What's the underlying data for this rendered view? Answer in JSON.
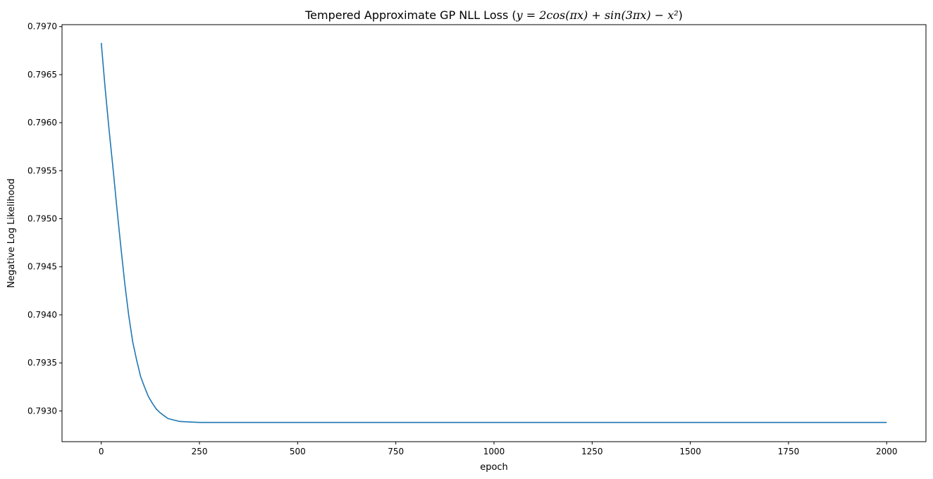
{
  "chart_data": {
    "type": "line",
    "title": {
      "prefix": "Tempered Approximate GP NLL Loss (",
      "math": "y = 2cos(πx) + sin(3πx) − x²",
      "suffix": ")"
    },
    "xlabel": "epoch",
    "ylabel": "Negative Log Likelihood",
    "xlim": [
      -100,
      2100
    ],
    "ylim": [
      0.79268,
      0.79702
    ],
    "x_ticks": [
      0,
      250,
      500,
      750,
      1000,
      1250,
      1500,
      1750,
      2000
    ],
    "x_tick_labels": [
      "0",
      "250",
      "500",
      "750",
      "1000",
      "1250",
      "1500",
      "1750",
      "2000"
    ],
    "y_ticks": [
      0.793,
      0.7935,
      0.794,
      0.7945,
      0.795,
      0.7955,
      0.796,
      0.7965,
      0.797
    ],
    "y_tick_labels": [
      "0.7930",
      "0.7935",
      "0.7940",
      "0.7945",
      "0.7950",
      "0.7955",
      "0.7960",
      "0.7965",
      "0.7970"
    ],
    "grid": false,
    "series": [
      {
        "color": "#1f77b4",
        "x": [
          0,
          10,
          20,
          30,
          40,
          50,
          60,
          70,
          80,
          90,
          100,
          110,
          120,
          130,
          140,
          150,
          160,
          170,
          180,
          190,
          200,
          225,
          250,
          300,
          400,
          500,
          750,
          1000,
          1250,
          1500,
          1750,
          2000
        ],
        "y": [
          0.79683,
          0.79635,
          0.79592,
          0.79552,
          0.7951,
          0.7947,
          0.79432,
          0.79399,
          0.79372,
          0.79353,
          0.79336,
          0.79325,
          0.79315,
          0.79308,
          0.79302,
          0.79298,
          0.79295,
          0.79292,
          0.79291,
          0.7929,
          0.79289,
          0.792885,
          0.79288,
          0.79288,
          0.79288,
          0.79288,
          0.79288,
          0.79288,
          0.79288,
          0.79288,
          0.79288,
          0.79288
        ]
      }
    ]
  }
}
